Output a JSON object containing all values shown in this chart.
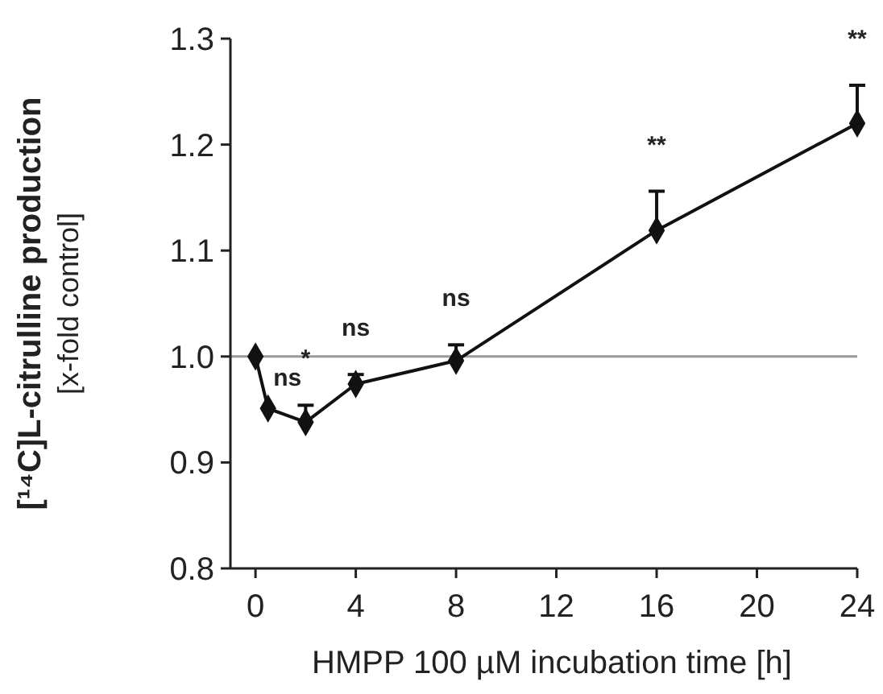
{
  "chart_data": {
    "type": "line",
    "xlabel": "HMPP 100 µM incubation time [h]",
    "ylabel": "[¹⁴C]L-citrulline production\n[x-fold control]",
    "x": [
      0,
      0.5,
      2,
      4,
      8,
      16,
      24
    ],
    "series": [
      {
        "color": "#111111",
        "values": [
          1.0,
          0.951,
          0.938,
          0.974,
          0.996,
          1.119,
          1.22
        ],
        "value_labels": [
          null,
          "ns",
          "*",
          "ns",
          "ns",
          "**",
          "**"
        ],
        "errors": [
          null,
          null,
          [
            0.938,
            0.954
          ],
          [
            0.974,
            0.983
          ],
          [
            0.996,
            1.011
          ],
          [
            1.119,
            1.156
          ],
          [
            1.22,
            1.256
          ]
        ]
      }
    ],
    "marker": "diamond",
    "line_style": "solid",
    "xlim": [
      -1,
      24
    ],
    "xticks": [
      0,
      4,
      8,
      12,
      16,
      20,
      24
    ],
    "ylim": [
      0.8,
      1.3
    ],
    "yticks": [
      {
        "value": 0.8,
        "label": "0.8"
      },
      {
        "value": 0.9,
        "label": "0.9"
      },
      {
        "value": 1.0,
        "label": "1.0"
      },
      {
        "value": 1.1,
        "label": "1.1"
      },
      {
        "value": 1.2,
        "label": "1.2"
      },
      {
        "value": 1.3,
        "label": "1.3"
      }
    ],
    "ref_lines": [
      {
        "axis": "y",
        "value": 1.0,
        "color": "#999999"
      }
    ]
  }
}
